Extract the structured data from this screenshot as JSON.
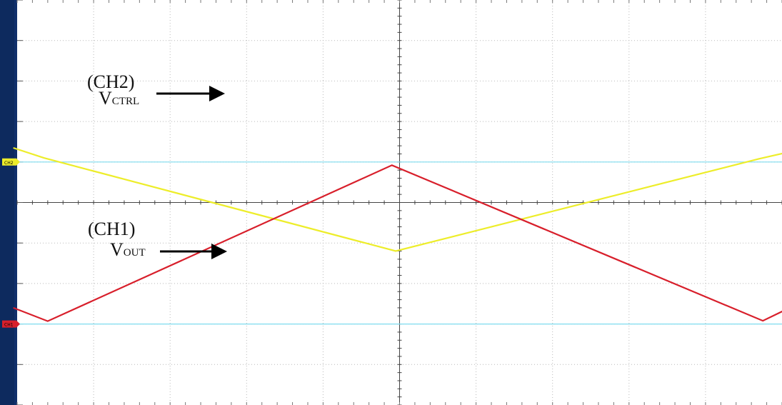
{
  "chart_data": {
    "type": "line",
    "title": "",
    "xlabel": "",
    "ylabel": "",
    "divisions": {
      "x": 10,
      "y": 10
    },
    "grid": true,
    "background": "#ffffff",
    "grid_color": "#b9b9b9",
    "center_axis_color": "#444444",
    "reference_color": "#7fdcef",
    "series": [
      {
        "name": "(CH2) VCTRL",
        "channel": "CH2",
        "color": "#eded2a",
        "marker_label": "CH2",
        "reference_level_div": 4.0,
        "points": [
          [
            -0.1,
            3.65
          ],
          [
            0.7,
            3.9
          ],
          [
            9.9,
            6.2
          ],
          [
            19.4,
            3.92
          ],
          [
            20.2,
            3.75
          ]
        ]
      },
      {
        "name": "(CH1) VOUT",
        "channel": "CH1",
        "color": "#d81f2b",
        "marker_label": "CH1",
        "reference_level_div": 8.0,
        "points": [
          [
            -0.1,
            7.6
          ],
          [
            0.8,
            7.93
          ],
          [
            9.8,
            4.08
          ],
          [
            19.5,
            7.92
          ],
          [
            20.2,
            7.6
          ]
        ]
      }
    ]
  },
  "annotations": {
    "ch2_label": "(CH2)",
    "ch2_signal_main": "V",
    "ch2_signal_sub": "CTRL",
    "ch1_label": "(CH1)",
    "ch1_signal_main": "V",
    "ch1_signal_sub": "OUT",
    "left_marker_ch2": "CH2",
    "left_marker_ch1": "CH1"
  }
}
